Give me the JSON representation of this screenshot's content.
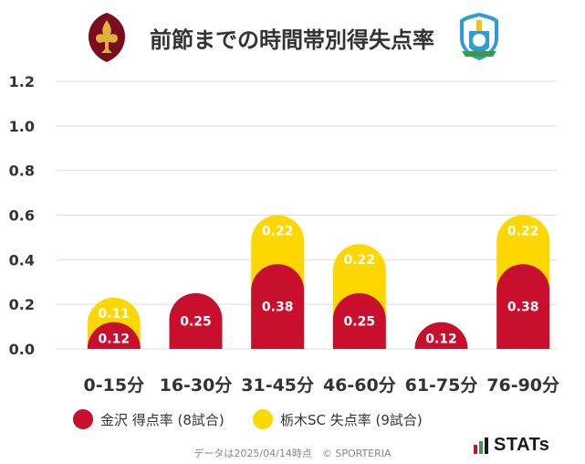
{
  "title": "前節までの時間帯別得失点率",
  "footer": "データは2025/04/14時点　© SPORTERIA",
  "brand": "STATs",
  "colors": {
    "series1": "#c8102e",
    "series2": "#ffd700",
    "grid": "#dddddd",
    "text": "#333333"
  },
  "chart_data": {
    "type": "bar",
    "stacked": true,
    "categories": [
      "0-15分",
      "16-30分",
      "31-45分",
      "46-60分",
      "61-75分",
      "76-90分"
    ],
    "series": [
      {
        "name": "金沢 得点率 (8試合)",
        "values": [
          0.12,
          0.25,
          0.38,
          0.25,
          0.12,
          0.38
        ],
        "labels": [
          "0.12",
          "0.25",
          "0.38",
          "0.25",
          "0.12",
          "0.38"
        ]
      },
      {
        "name": "栃木SC 失点率 (9試合)",
        "values": [
          0.11,
          0,
          0.22,
          0.22,
          0,
          0.22
        ],
        "labels": [
          "0.11",
          "",
          "0.22",
          "0.22",
          "",
          "0.22"
        ]
      }
    ],
    "ylim": [
      0,
      1.2
    ],
    "yticks": [
      "0.0",
      "0.2",
      "0.4",
      "0.6",
      "0.8",
      "1.0",
      "1.2"
    ],
    "grid": true,
    "legend_position": "bottom"
  }
}
